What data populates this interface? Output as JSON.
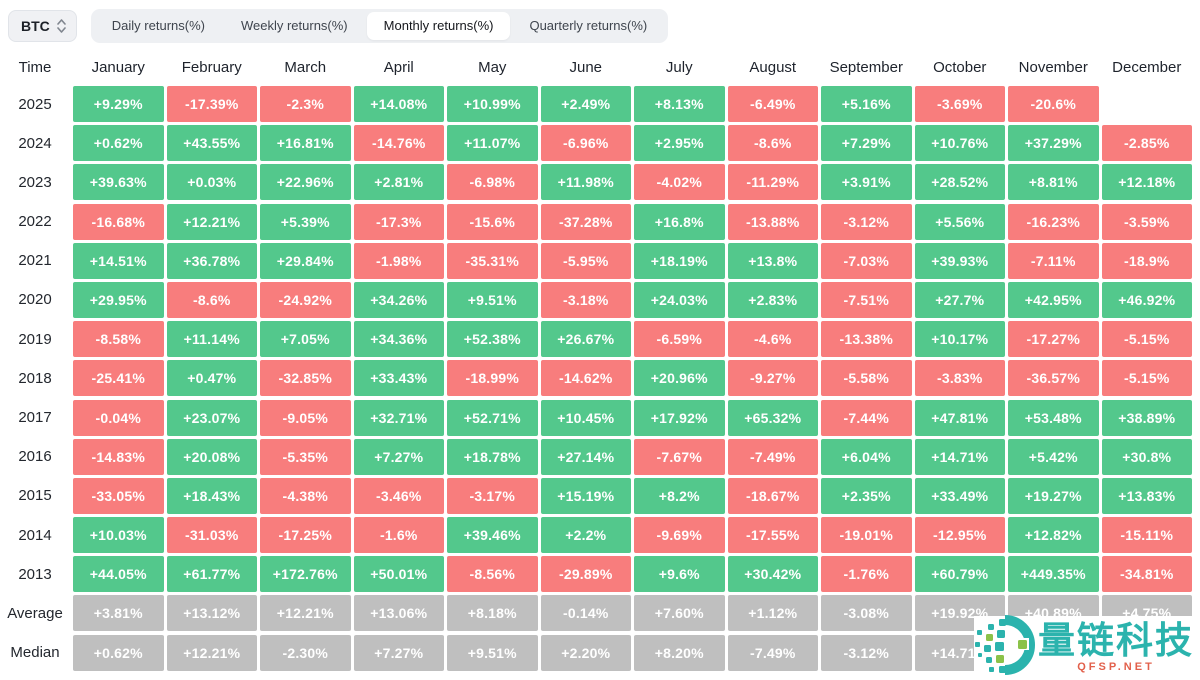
{
  "controls": {
    "asset_selector": {
      "value": "BTC"
    },
    "tabs": [
      {
        "label": "Daily returns(%)",
        "active": false
      },
      {
        "label": "Weekly returns(%)",
        "active": false
      },
      {
        "label": "Monthly returns(%)",
        "active": true
      },
      {
        "label": "Quarterly returns(%)",
        "active": false
      }
    ]
  },
  "table": {
    "corner_label": "Time",
    "months": [
      "January",
      "February",
      "March",
      "April",
      "May",
      "June",
      "July",
      "August",
      "September",
      "October",
      "November",
      "December"
    ],
    "rows": [
      {
        "label": "2025",
        "type": "year",
        "values": [
          "+9.29%",
          "-17.39%",
          "-2.3%",
          "+14.08%",
          "+10.99%",
          "+2.49%",
          "+8.13%",
          "-6.49%",
          "+5.16%",
          "-3.69%",
          "-20.6%",
          null
        ]
      },
      {
        "label": "2024",
        "type": "year",
        "values": [
          "+0.62%",
          "+43.55%",
          "+16.81%",
          "-14.76%",
          "+11.07%",
          "-6.96%",
          "+2.95%",
          "-8.6%",
          "+7.29%",
          "+10.76%",
          "+37.29%",
          "-2.85%"
        ]
      },
      {
        "label": "2023",
        "type": "year",
        "values": [
          "+39.63%",
          "+0.03%",
          "+22.96%",
          "+2.81%",
          "-6.98%",
          "+11.98%",
          "-4.02%",
          "-11.29%",
          "+3.91%",
          "+28.52%",
          "+8.81%",
          "+12.18%"
        ]
      },
      {
        "label": "2022",
        "type": "year",
        "values": [
          "-16.68%",
          "+12.21%",
          "+5.39%",
          "-17.3%",
          "-15.6%",
          "-37.28%",
          "+16.8%",
          "-13.88%",
          "-3.12%",
          "+5.56%",
          "-16.23%",
          "-3.59%"
        ]
      },
      {
        "label": "2021",
        "type": "year",
        "values": [
          "+14.51%",
          "+36.78%",
          "+29.84%",
          "-1.98%",
          "-35.31%",
          "-5.95%",
          "+18.19%",
          "+13.8%",
          "-7.03%",
          "+39.93%",
          "-7.11%",
          "-18.9%"
        ]
      },
      {
        "label": "2020",
        "type": "year",
        "values": [
          "+29.95%",
          "-8.6%",
          "-24.92%",
          "+34.26%",
          "+9.51%",
          "-3.18%",
          "+24.03%",
          "+2.83%",
          "-7.51%",
          "+27.7%",
          "+42.95%",
          "+46.92%"
        ]
      },
      {
        "label": "2019",
        "type": "year",
        "values": [
          "-8.58%",
          "+11.14%",
          "+7.05%",
          "+34.36%",
          "+52.38%",
          "+26.67%",
          "-6.59%",
          "-4.6%",
          "-13.38%",
          "+10.17%",
          "-17.27%",
          "-5.15%"
        ]
      },
      {
        "label": "2018",
        "type": "year",
        "values": [
          "-25.41%",
          "+0.47%",
          "-32.85%",
          "+33.43%",
          "-18.99%",
          "-14.62%",
          "+20.96%",
          "-9.27%",
          "-5.58%",
          "-3.83%",
          "-36.57%",
          "-5.15%"
        ]
      },
      {
        "label": "2017",
        "type": "year",
        "values": [
          "-0.04%",
          "+23.07%",
          "-9.05%",
          "+32.71%",
          "+52.71%",
          "+10.45%",
          "+17.92%",
          "+65.32%",
          "-7.44%",
          "+47.81%",
          "+53.48%",
          "+38.89%"
        ]
      },
      {
        "label": "2016",
        "type": "year",
        "values": [
          "-14.83%",
          "+20.08%",
          "-5.35%",
          "+7.27%",
          "+18.78%",
          "+27.14%",
          "-7.67%",
          "-7.49%",
          "+6.04%",
          "+14.71%",
          "+5.42%",
          "+30.8%"
        ]
      },
      {
        "label": "2015",
        "type": "year",
        "values": [
          "-33.05%",
          "+18.43%",
          "-4.38%",
          "-3.46%",
          "-3.17%",
          "+15.19%",
          "+8.2%",
          "-18.67%",
          "+2.35%",
          "+33.49%",
          "+19.27%",
          "+13.83%"
        ]
      },
      {
        "label": "2014",
        "type": "year",
        "values": [
          "+10.03%",
          "-31.03%",
          "-17.25%",
          "-1.6%",
          "+39.46%",
          "+2.2%",
          "-9.69%",
          "-17.55%",
          "-19.01%",
          "-12.95%",
          "+12.82%",
          "-15.11%"
        ]
      },
      {
        "label": "2013",
        "type": "year",
        "values": [
          "+44.05%",
          "+61.77%",
          "+172.76%",
          "+50.01%",
          "-8.56%",
          "-29.89%",
          "+9.6%",
          "+30.42%",
          "-1.76%",
          "+60.79%",
          "+449.35%",
          "-34.81%"
        ]
      },
      {
        "label": "Average",
        "type": "summary",
        "values": [
          "+3.81%",
          "+13.12%",
          "+12.21%",
          "+13.06%",
          "+8.18%",
          "-0.14%",
          "+7.60%",
          "+1.12%",
          "-3.08%",
          "+19.92%",
          "+40.89%",
          "+4.75%"
        ]
      },
      {
        "label": "Median",
        "type": "summary",
        "values": [
          "+0.62%",
          "+12.21%",
          "-2.30%",
          "+7.27%",
          "+9.51%",
          "+2.20%",
          "+8.20%",
          "-7.49%",
          "-3.12%",
          "+14.71%",
          null,
          null
        ]
      }
    ]
  },
  "colors": {
    "positive": "#53c88c",
    "negative": "#f87d7d",
    "summary": "#bfbfbf",
    "watermark_teal": "#2bb3ad",
    "watermark_green": "#8bc249",
    "watermark_orange": "#e2604b"
  },
  "watermark": {
    "brand": "量链科技",
    "site": "QFSP.NET"
  }
}
